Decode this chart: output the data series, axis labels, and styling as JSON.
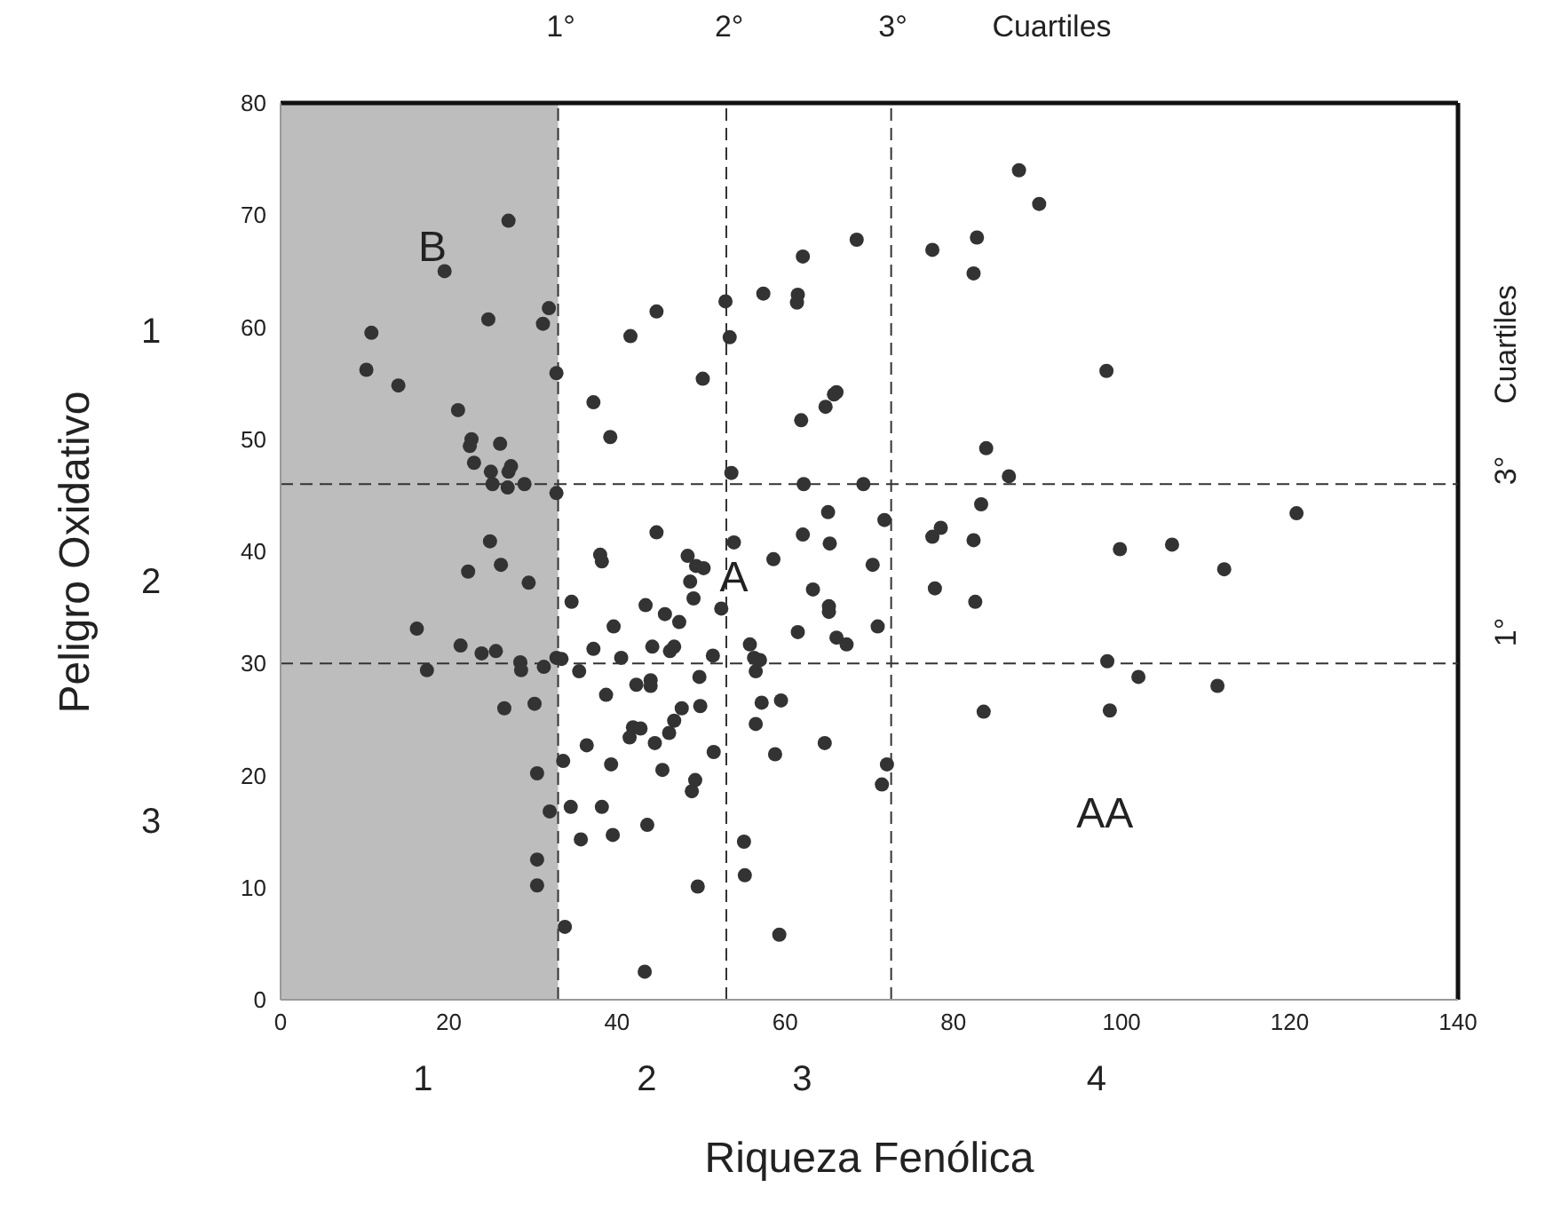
{
  "chart_data": {
    "type": "scatter",
    "xlabel": "Riqueza Fenólica",
    "ylabel": "Peligro Oxidativo",
    "xlim": [
      0,
      140
    ],
    "xticks": [
      0,
      20,
      40,
      60,
      80,
      100,
      120,
      140
    ],
    "ylim": [
      0,
      80
    ],
    "yticks": [
      0,
      10,
      20,
      30,
      40,
      50,
      60,
      70,
      80
    ],
    "marker": "circle",
    "x": [
      27.1,
      19.5,
      24.7,
      31.9,
      31.2,
      10.8,
      10.2,
      14.0,
      32.8,
      21.1,
      22.7,
      22.5,
      26.1,
      23.0,
      25.0,
      27.1,
      27.4,
      25.2,
      27.0,
      29.0,
      32.8,
      24.9,
      44.7,
      52.9,
      53.4,
      41.6,
      50.2,
      37.2,
      39.2,
      53.6,
      44.7,
      38.0,
      48.4,
      53.9,
      22.3,
      26.2,
      29.5,
      16.2,
      21.4,
      23.9,
      25.6,
      28.5,
      28.6,
      31.3,
      17.4,
      26.6,
      30.2,
      30.5,
      32.0,
      30.5,
      30.5,
      38.2,
      49.4,
      50.3,
      48.7,
      49.1,
      34.6,
      43.4,
      52.4,
      45.7,
      39.6,
      47.4,
      37.2,
      40.5,
      44.2,
      46.3,
      46.8,
      51.4,
      32.8,
      33.4,
      35.5,
      49.8,
      42.3,
      44.0,
      44.0,
      38.7,
      47.7,
      49.9,
      46.8,
      41.9,
      42.8,
      46.2,
      41.5,
      44.5,
      36.4,
      33.6,
      39.3,
      45.4,
      51.5,
      49.3,
      48.9,
      34.5,
      38.2,
      43.6,
      39.5,
      35.7,
      49.6,
      33.8,
      43.3,
      87.8,
      90.2,
      77.5,
      82.8,
      82.4,
      68.5,
      62.1,
      57.4,
      61.5,
      61.4,
      66.1,
      65.8,
      64.8,
      61.9,
      83.9,
      86.6,
      62.2,
      69.3,
      65.1,
      71.8,
      62.1,
      65.3,
      83.3,
      78.5,
      77.5,
      82.4,
      58.6,
      70.4,
      63.3,
      65.2,
      65.2,
      61.5,
      71.0,
      66.1,
      67.3,
      55.8,
      56.3,
      57.0,
      56.5,
      57.2,
      59.5,
      56.5,
      64.7,
      58.8,
      72.1,
      71.5,
      55.1,
      55.2,
      59.3,
      77.8,
      82.6,
      83.6,
      98.2,
      120.8,
      99.8,
      106.0,
      112.2,
      98.3,
      102.0,
      111.4,
      98.6
    ],
    "series": [
      {
        "color": "#333333",
        "values": [
          69.5,
          65.0,
          60.7,
          61.7,
          60.3,
          59.5,
          56.2,
          54.8,
          55.9,
          52.6,
          50.0,
          49.4,
          49.6,
          47.9,
          47.1,
          47.1,
          47.6,
          46.0,
          45.7,
          46.0,
          45.2,
          40.9,
          61.4,
          62.3,
          59.1,
          59.2,
          55.4,
          53.3,
          50.2,
          47.0,
          41.7,
          39.7,
          39.6,
          40.8,
          38.2,
          38.8,
          37.2,
          33.1,
          31.6,
          30.9,
          31.1,
          30.1,
          29.4,
          29.7,
          29.4,
          26.0,
          26.4,
          20.2,
          16.8,
          12.5,
          10.2,
          39.1,
          38.7,
          38.5,
          37.3,
          35.8,
          35.5,
          35.2,
          34.9,
          34.4,
          33.3,
          33.7,
          31.3,
          30.5,
          31.5,
          31.1,
          31.5,
          30.7,
          30.5,
          30.4,
          29.3,
          28.8,
          28.1,
          28.5,
          28.0,
          27.2,
          26.0,
          26.2,
          24.9,
          24.3,
          24.2,
          23.8,
          23.4,
          22.9,
          22.7,
          21.3,
          21.0,
          20.5,
          22.1,
          19.6,
          18.6,
          17.2,
          17.2,
          15.6,
          14.7,
          14.3,
          10.1,
          6.5,
          2.5,
          74.0,
          71.0,
          66.9,
          68.0,
          64.8,
          67.8,
          66.3,
          63.0,
          62.9,
          62.2,
          54.2,
          54.0,
          52.9,
          51.7,
          49.2,
          46.7,
          46.0,
          46.0,
          43.5,
          42.8,
          41.5,
          40.7,
          44.2,
          42.1,
          41.3,
          41.0,
          39.3,
          38.8,
          36.6,
          35.1,
          34.6,
          32.8,
          33.3,
          32.3,
          31.7,
          31.7,
          30.5,
          30.3,
          29.3,
          26.5,
          26.7,
          24.6,
          22.9,
          21.9,
          21.0,
          19.2,
          14.1,
          11.1,
          5.8,
          36.7,
          35.5,
          25.7,
          56.1,
          43.4,
          40.2,
          40.6,
          38.4,
          30.2,
          28.8,
          28.0,
          25.8
        ]
      }
    ],
    "ref_lines": [
      {
        "axis": "x",
        "value": 33
      },
      {
        "axis": "x",
        "value": 53
      },
      {
        "axis": "x",
        "value": 72.6
      },
      {
        "axis": "y",
        "value": 46
      },
      {
        "axis": "y",
        "value": 30
      }
    ],
    "bands": [
      {
        "axis": "x",
        "from": 0,
        "to": 33,
        "color": "#bdbdbd"
      }
    ],
    "annotations": [
      "1°",
      "2°",
      "3°",
      "Cuartiles",
      "3°",
      "1°",
      "Cuartiles",
      "B",
      "A",
      "AA",
      "1",
      "2",
      "3",
      "4",
      "1",
      "2",
      "3"
    ]
  }
}
